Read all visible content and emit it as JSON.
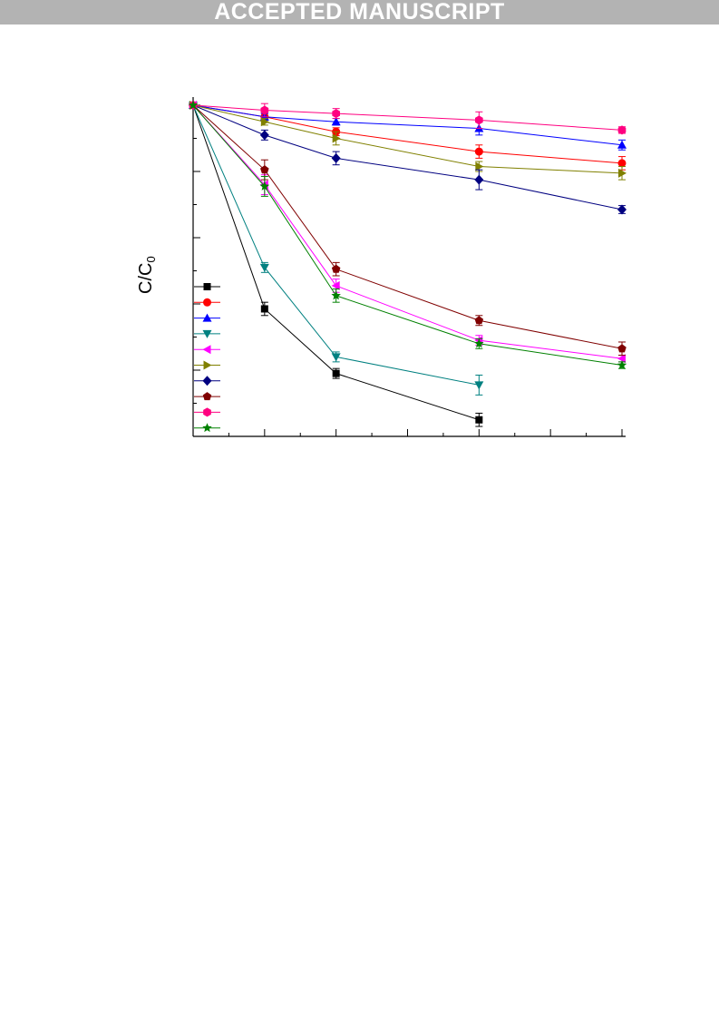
{
  "banner": {
    "text": "ACCEPTED MANUSCRIPT"
  },
  "chart_data": {
    "type": "line",
    "xlim": [
      0,
      6
    ],
    "ylim": [
      0,
      1
    ],
    "ylabel_main": "C/C",
    "ylabel_sub": "0",
    "grid": false,
    "legend_placement": "bottom-left",
    "x": [
      0,
      1,
      2,
      4,
      6
    ],
    "series": [
      {
        "color": "#000000",
        "marker": "square",
        "values": [
          1.0,
          0.385,
          0.19,
          0.05,
          null
        ],
        "errors": [
          0,
          0.02,
          0.015,
          0.02,
          0
        ]
      },
      {
        "color": "#ff0000",
        "marker": "circle",
        "values": [
          1.0,
          0.965,
          0.92,
          0.86,
          0.825
        ],
        "errors": [
          0,
          0.01,
          0.012,
          0.02,
          0.02
        ]
      },
      {
        "color": "#0000ff",
        "marker": "triangle-up",
        "values": [
          1.0,
          0.965,
          0.95,
          0.93,
          0.88
        ],
        "errors": [
          0,
          0.01,
          0.01,
          0.02,
          0.015
        ]
      },
      {
        "color": "#008080",
        "marker": "triangle-down",
        "values": [
          1.0,
          0.51,
          0.24,
          0.155,
          null
        ],
        "errors": [
          0,
          0.015,
          0.015,
          0.03,
          0
        ]
      },
      {
        "color": "#ff00ff",
        "marker": "triangle-left",
        "values": [
          1.0,
          0.76,
          0.455,
          0.29,
          0.235
        ],
        "errors": [
          0,
          0.03,
          0.02,
          0.015,
          0.01
        ]
      },
      {
        "color": "#808000",
        "marker": "triangle-right",
        "values": [
          1.0,
          0.95,
          0.9,
          0.815,
          0.795
        ],
        "errors": [
          0,
          0.01,
          0.02,
          0.015,
          0.02
        ]
      },
      {
        "color": "#000080",
        "marker": "diamond",
        "values": [
          1.0,
          0.91,
          0.84,
          0.775,
          0.685
        ],
        "errors": [
          0,
          0.015,
          0.02,
          0.03,
          0.012
        ]
      },
      {
        "color": "#800000",
        "marker": "pentagon",
        "values": [
          1.0,
          0.805,
          0.505,
          0.35,
          0.265
        ],
        "errors": [
          0,
          0.03,
          0.02,
          0.015,
          0.02
        ]
      },
      {
        "color": "#ff0080",
        "marker": "hexagon",
        "values": [
          1.0,
          0.985,
          0.975,
          0.955,
          0.925
        ],
        "errors": [
          0,
          0.02,
          0.015,
          0.025,
          0.01
        ]
      },
      {
        "color": "#008000",
        "marker": "star",
        "values": [
          1.0,
          0.755,
          0.425,
          0.28,
          0.215
        ],
        "errors": [
          0,
          0.03,
          0.02,
          0.015,
          0.01
        ]
      }
    ]
  }
}
